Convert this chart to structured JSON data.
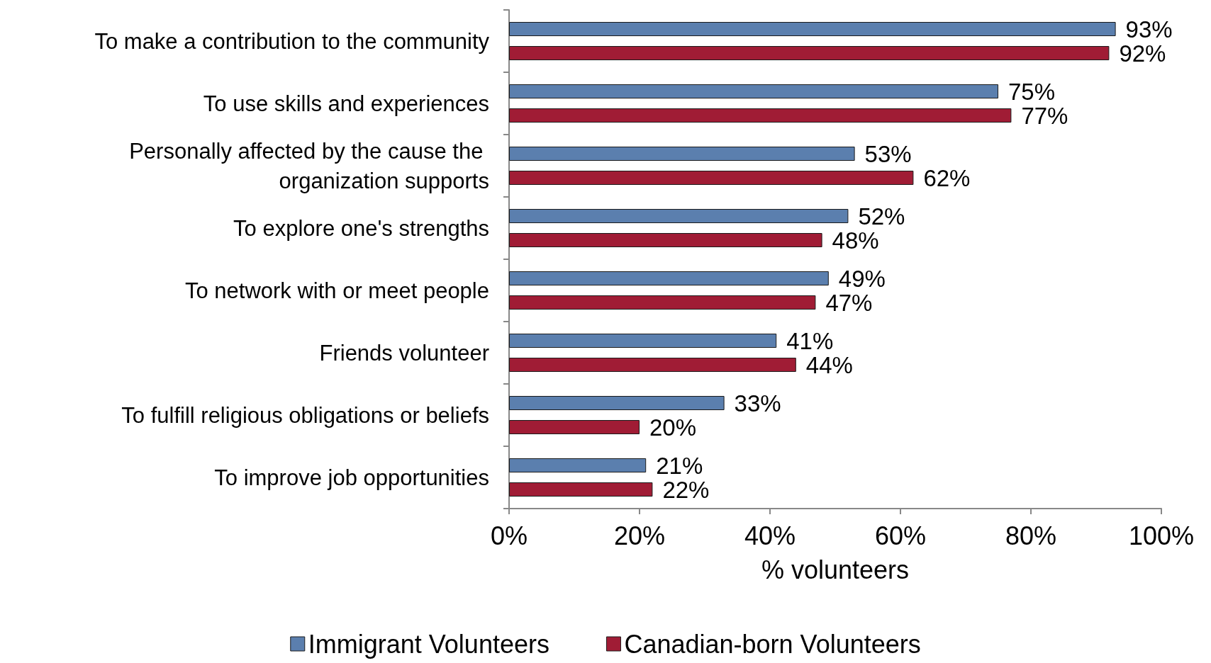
{
  "chart_data": {
    "type": "bar",
    "orientation": "horizontal",
    "xlabel": "% volunteers",
    "categories": [
      "To make a contribution to the community",
      "To use skills and experiences",
      "Personally affected by the cause the organization supports",
      "To explore one's strengths",
      "To network with or meet people",
      "Friends volunteer",
      "To fulfill religious obligations or beliefs",
      "To improve job opportunities"
    ],
    "series": [
      {
        "name": "Immigrant Volunteers",
        "color": "#5b7fae",
        "values": [
          93,
          75,
          53,
          52,
          49,
          41,
          33,
          21
        ],
        "value_labels": [
          "93%",
          "75%",
          "53%",
          "52%",
          "49%",
          "41%",
          "33%",
          "21%"
        ]
      },
      {
        "name": "Canadian-born Volunteers",
        "color": "#a01c35",
        "values": [
          92,
          77,
          62,
          48,
          47,
          44,
          20,
          22
        ],
        "value_labels": [
          "92%",
          "77%",
          "62%",
          "48%",
          "47%",
          "44%",
          "20%",
          "22%"
        ]
      }
    ],
    "xlim": [
      0,
      100
    ],
    "xticks": [
      {
        "value": 0,
        "label": "0%"
      },
      {
        "value": 20,
        "label": "20%"
      },
      {
        "value": 40,
        "label": "40%"
      },
      {
        "value": 60,
        "label": "60%"
      },
      {
        "value": 80,
        "label": "80%"
      },
      {
        "value": 100,
        "label": "100%"
      }
    ],
    "grid": false,
    "legend": "bottom"
  }
}
